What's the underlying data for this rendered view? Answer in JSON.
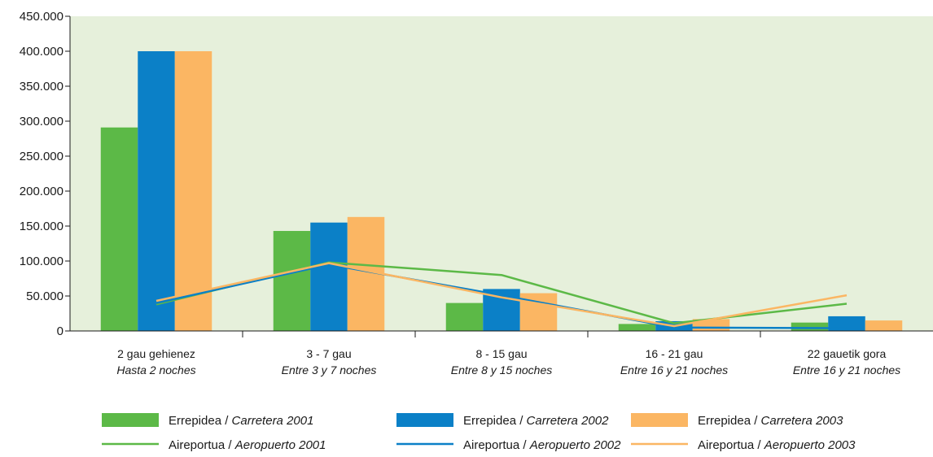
{
  "chart_data": {
    "type": "bar",
    "categories": [
      {
        "eu": "2 gau gehienez",
        "es": "Hasta 2 noches"
      },
      {
        "eu": "3 - 7 gau",
        "es": "Entre 3 y 7 noches"
      },
      {
        "eu": "8 - 15 gau",
        "es": "Entre 8 y 15 noches"
      },
      {
        "eu": "16 - 21 gau",
        "es": "Entre 16 y 21 noches"
      },
      {
        "eu": "22 gauetik gora",
        "es": "Entre 16 y 21 noches"
      }
    ],
    "yticks": [
      "0",
      "50.000",
      "100.000",
      "150.000",
      "200.000",
      "250.000",
      "300.000",
      "350.000",
      "400.000",
      "450.000"
    ],
    "ylim": [
      0,
      450000
    ],
    "grid": false,
    "background": "#e6f0db",
    "bar_series": [
      {
        "name_eu": "Errepidea /",
        "name_es": "Carretera 2001",
        "color": "#5cb947",
        "values": [
          291000,
          143000,
          40000,
          10000,
          12000
        ]
      },
      {
        "name_eu": "Errepidea /",
        "name_es": "Carretera 2002",
        "color": "#0b80c7",
        "values": [
          400000,
          155000,
          60000,
          14000,
          21000
        ]
      },
      {
        "name_eu": "Errepidea /",
        "name_es": "Carretera 2003",
        "color": "#fbb663",
        "values": [
          400000,
          163000,
          54000,
          17000,
          15000
        ]
      }
    ],
    "line_series": [
      {
        "name_eu": "Aireportua /",
        "name_es": "Aeropuerto 2001",
        "color": "#5cb947",
        "values": [
          38000,
          98000,
          80000,
          11000,
          39000
        ]
      },
      {
        "name_eu": "Aireportua /",
        "name_es": "Aeropuerto 2002",
        "color": "#0b80c7",
        "values": [
          40000,
          95000,
          51000,
          5000,
          4000
        ]
      },
      {
        "name_eu": "Aireportua /",
        "name_es": "Aeropuerto 2003",
        "color": "#fbb663",
        "values": [
          43000,
          97000,
          48000,
          7000,
          51000
        ]
      }
    ],
    "legend_position": "bottom"
  }
}
